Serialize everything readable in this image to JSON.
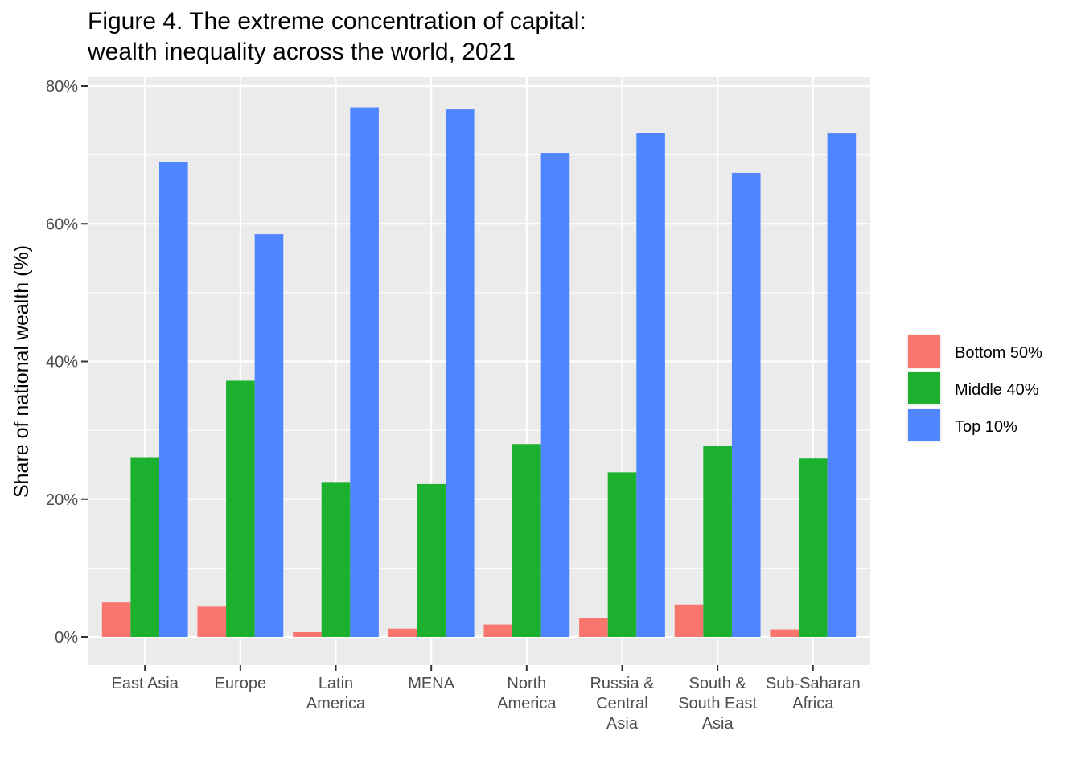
{
  "chart_data": {
    "type": "bar",
    "title": [
      "Figure 4. The extreme concentration of capital:",
      "wealth inequality across the world, 2021"
    ],
    "xlabel": "",
    "ylabel": "Share of national wealth (%)",
    "ylim": [
      0,
      80
    ],
    "yticks": [
      0,
      20,
      40,
      60,
      80
    ],
    "ytick_labels": [
      "0%",
      "20%",
      "40%",
      "60%",
      "80%"
    ],
    "categories": [
      [
        "East Asia"
      ],
      [
        "Europe"
      ],
      [
        "Latin",
        "America"
      ],
      [
        "MENA"
      ],
      [
        "North",
        "America"
      ],
      [
        "Russia &",
        "Central",
        "Asia"
      ],
      [
        "South &",
        "South East",
        "Asia"
      ],
      [
        "Sub-Saharan",
        "Africa"
      ]
    ],
    "series": [
      {
        "name": "Bottom 50%",
        "color": "#F8766D",
        "values": [
          5.0,
          4.4,
          0.7,
          1.2,
          1.8,
          2.8,
          4.7,
          1.1
        ]
      },
      {
        "name": "Middle 40%",
        "color": "#1CB02F",
        "values": [
          26.1,
          37.2,
          22.5,
          22.2,
          28.0,
          23.9,
          27.8,
          25.9
        ]
      },
      {
        "name": "Top 10%",
        "color": "#4F86FF",
        "values": [
          69.0,
          58.5,
          76.9,
          76.6,
          70.3,
          73.2,
          67.4,
          73.1
        ]
      }
    ],
    "grid": true,
    "legend_position": "right",
    "panel_background": "#EBEBEB"
  }
}
